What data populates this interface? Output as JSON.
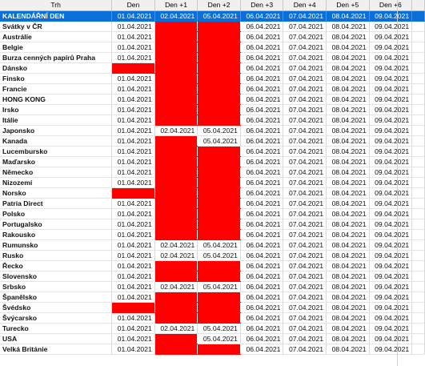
{
  "header": {
    "trh": "Trh",
    "days": [
      "Den",
      "Den +1",
      "Den +2",
      "Den +3",
      "Den +4",
      "Den +5",
      "Den +6"
    ]
  },
  "colors": {
    "selected_row": "#0a6fd8",
    "closed_cell": "#ff0000",
    "header_bg": "#f0f0f0"
  },
  "rows": [
    {
      "name": "KALENDÁŘNÍ DEN",
      "cells": [
        "01.04.2021",
        "02.04.2021",
        "05.04.2021",
        "06.04.2021",
        "07.04.2021",
        "08.04.2021",
        "09.04.2021"
      ]
    },
    {
      "name": "Svátky v ČR",
      "cells": [
        "01.04.2021",
        null,
        null,
        "06.04.2021",
        "07.04.2021",
        "08.04.2021",
        "09.04.2021"
      ]
    },
    {
      "name": "Austrálie",
      "cells": [
        "01.04.2021",
        null,
        null,
        "06.04.2021",
        "07.04.2021",
        "08.04.2021",
        "09.04.2021"
      ]
    },
    {
      "name": "Belgie",
      "cells": [
        "01.04.2021",
        null,
        null,
        "06.04.2021",
        "07.04.2021",
        "08.04.2021",
        "09.04.2021"
      ]
    },
    {
      "name": "Burza cenných papírů Praha",
      "cells": [
        "01.04.2021",
        null,
        null,
        "06.04.2021",
        "07.04.2021",
        "08.04.2021",
        "09.04.2021"
      ]
    },
    {
      "name": "Dánsko",
      "cells": [
        null,
        null,
        null,
        "06.04.2021",
        "07.04.2021",
        "08.04.2021",
        "09.04.2021"
      ]
    },
    {
      "name": "Finsko",
      "cells": [
        "01.04.2021",
        null,
        null,
        "06.04.2021",
        "07.04.2021",
        "08.04.2021",
        "09.04.2021"
      ]
    },
    {
      "name": "Francie",
      "cells": [
        "01.04.2021",
        null,
        null,
        "06.04.2021",
        "07.04.2021",
        "08.04.2021",
        "09.04.2021"
      ]
    },
    {
      "name": "HONG KONG",
      "cells": [
        "01.04.2021",
        null,
        null,
        "06.04.2021",
        "07.04.2021",
        "08.04.2021",
        "09.04.2021"
      ]
    },
    {
      "name": "Irsko",
      "cells": [
        "01.04.2021",
        null,
        null,
        "06.04.2021",
        "07.04.2021",
        "08.04.2021",
        "09.04.2021"
      ]
    },
    {
      "name": "Itálie",
      "cells": [
        "01.04.2021",
        null,
        null,
        "06.04.2021",
        "07.04.2021",
        "08.04.2021",
        "09.04.2021"
      ]
    },
    {
      "name": "Japonsko",
      "cells": [
        "01.04.2021",
        "02.04.2021",
        "05.04.2021",
        "06.04.2021",
        "07.04.2021",
        "08.04.2021",
        "09.04.2021"
      ]
    },
    {
      "name": "Kanada",
      "cells": [
        "01.04.2021",
        null,
        "05.04.2021",
        "06.04.2021",
        "07.04.2021",
        "08.04.2021",
        "09.04.2021"
      ]
    },
    {
      "name": "Lucembursko",
      "cells": [
        "01.04.2021",
        null,
        null,
        "06.04.2021",
        "07.04.2021",
        "08.04.2021",
        "09.04.2021"
      ]
    },
    {
      "name": "Maďarsko",
      "cells": [
        "01.04.2021",
        null,
        null,
        "06.04.2021",
        "07.04.2021",
        "08.04.2021",
        "09.04.2021"
      ]
    },
    {
      "name": "Německo",
      "cells": [
        "01.04.2021",
        null,
        null,
        "06.04.2021",
        "07.04.2021",
        "08.04.2021",
        "09.04.2021"
      ]
    },
    {
      "name": "Nizozemí",
      "cells": [
        "01.04.2021",
        null,
        null,
        "06.04.2021",
        "07.04.2021",
        "08.04.2021",
        "09.04.2021"
      ]
    },
    {
      "name": "Norsko",
      "cells": [
        null,
        null,
        null,
        "06.04.2021",
        "07.04.2021",
        "08.04.2021",
        "09.04.2021"
      ]
    },
    {
      "name": "Patria Direct",
      "cells": [
        "01.04.2021",
        null,
        null,
        "06.04.2021",
        "07.04.2021",
        "08.04.2021",
        "09.04.2021"
      ]
    },
    {
      "name": "Polsko",
      "cells": [
        "01.04.2021",
        null,
        null,
        "06.04.2021",
        "07.04.2021",
        "08.04.2021",
        "09.04.2021"
      ]
    },
    {
      "name": "Portugalsko",
      "cells": [
        "01.04.2021",
        null,
        null,
        "06.04.2021",
        "07.04.2021",
        "08.04.2021",
        "09.04.2021"
      ]
    },
    {
      "name": "Rakousko",
      "cells": [
        "01.04.2021",
        null,
        null,
        "06.04.2021",
        "07.04.2021",
        "08.04.2021",
        "09.04.2021"
      ]
    },
    {
      "name": "Rumunsko",
      "cells": [
        "01.04.2021",
        "02.04.2021",
        "05.04.2021",
        "06.04.2021",
        "07.04.2021",
        "08.04.2021",
        "09.04.2021"
      ]
    },
    {
      "name": "Rusko",
      "cells": [
        "01.04.2021",
        "02.04.2021",
        "05.04.2021",
        "06.04.2021",
        "07.04.2021",
        "08.04.2021",
        "09.04.2021"
      ]
    },
    {
      "name": "Řecko",
      "cells": [
        "01.04.2021",
        null,
        null,
        "06.04.2021",
        "07.04.2021",
        "08.04.2021",
        "09.04.2021"
      ]
    },
    {
      "name": "Slovensko",
      "cells": [
        "01.04.2021",
        null,
        null,
        "06.04.2021",
        "07.04.2021",
        "08.04.2021",
        "09.04.2021"
      ]
    },
    {
      "name": "Srbsko",
      "cells": [
        "01.04.2021",
        "02.04.2021",
        "05.04.2021",
        "06.04.2021",
        "07.04.2021",
        "08.04.2021",
        "09.04.2021"
      ]
    },
    {
      "name": "Španělsko",
      "cells": [
        "01.04.2021",
        null,
        null,
        "06.04.2021",
        "07.04.2021",
        "08.04.2021",
        "09.04.2021"
      ]
    },
    {
      "name": "Švédsko",
      "cells": [
        null,
        null,
        null,
        "06.04.2021",
        "07.04.2021",
        "08.04.2021",
        "09.04.2021"
      ]
    },
    {
      "name": "Švýcarsko",
      "cells": [
        "01.04.2021",
        null,
        null,
        "06.04.2021",
        "07.04.2021",
        "08.04.2021",
        "09.04.2021"
      ]
    },
    {
      "name": "Turecko",
      "cells": [
        "01.04.2021",
        "02.04.2021",
        "05.04.2021",
        "06.04.2021",
        "07.04.2021",
        "08.04.2021",
        "09.04.2021"
      ]
    },
    {
      "name": "USA",
      "cells": [
        "01.04.2021",
        null,
        "05.04.2021",
        "06.04.2021",
        "07.04.2021",
        "08.04.2021",
        "09.04.2021"
      ]
    },
    {
      "name": "Velká Británie",
      "cells": [
        "01.04.2021",
        null,
        null,
        "06.04.2021",
        "07.04.2021",
        "08.04.2021",
        "09.04.2021"
      ]
    }
  ]
}
